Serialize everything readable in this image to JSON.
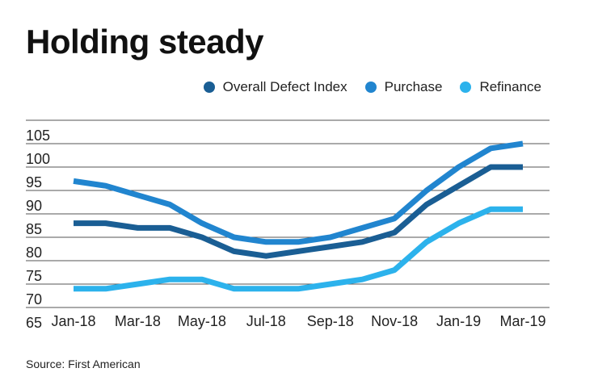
{
  "chart_data": {
    "type": "line",
    "title": "Holding steady",
    "source": "Source: First American",
    "x": [
      "Jan-18",
      "Feb-18",
      "Mar-18",
      "Apr-18",
      "May-18",
      "Jun-18",
      "Jul-18",
      "Aug-18",
      "Sep-18",
      "Oct-18",
      "Nov-18",
      "Dec-18",
      "Jan-19",
      "Feb-19",
      "Mar-19"
    ],
    "xticks": [
      "Jan-18",
      "Mar-18",
      "May-18",
      "Jul-18",
      "Sep-18",
      "Nov-18",
      "Jan-19",
      "Mar-19"
    ],
    "yticks": [
      65,
      70,
      75,
      80,
      85,
      90,
      95,
      100,
      105
    ],
    "ylim": [
      65,
      105
    ],
    "grid": true,
    "legend_position": "top-right",
    "series": [
      {
        "name": "Overall Defect Index",
        "color": "#1a5e94",
        "values": [
          83,
          83,
          82,
          82,
          80,
          77,
          76,
          77,
          78,
          79,
          81,
          87,
          91,
          95,
          95
        ]
      },
      {
        "name": "Purchase",
        "color": "#2185cf",
        "values": [
          92,
          91,
          89,
          87,
          83,
          80,
          79,
          79,
          80,
          82,
          84,
          90,
          95,
          99,
          100
        ]
      },
      {
        "name": "Refinance",
        "color": "#2cb2ec",
        "values": [
          69,
          69,
          70,
          71,
          71,
          69,
          69,
          69,
          70,
          71,
          73,
          79,
          83,
          86,
          86
        ]
      }
    ]
  }
}
